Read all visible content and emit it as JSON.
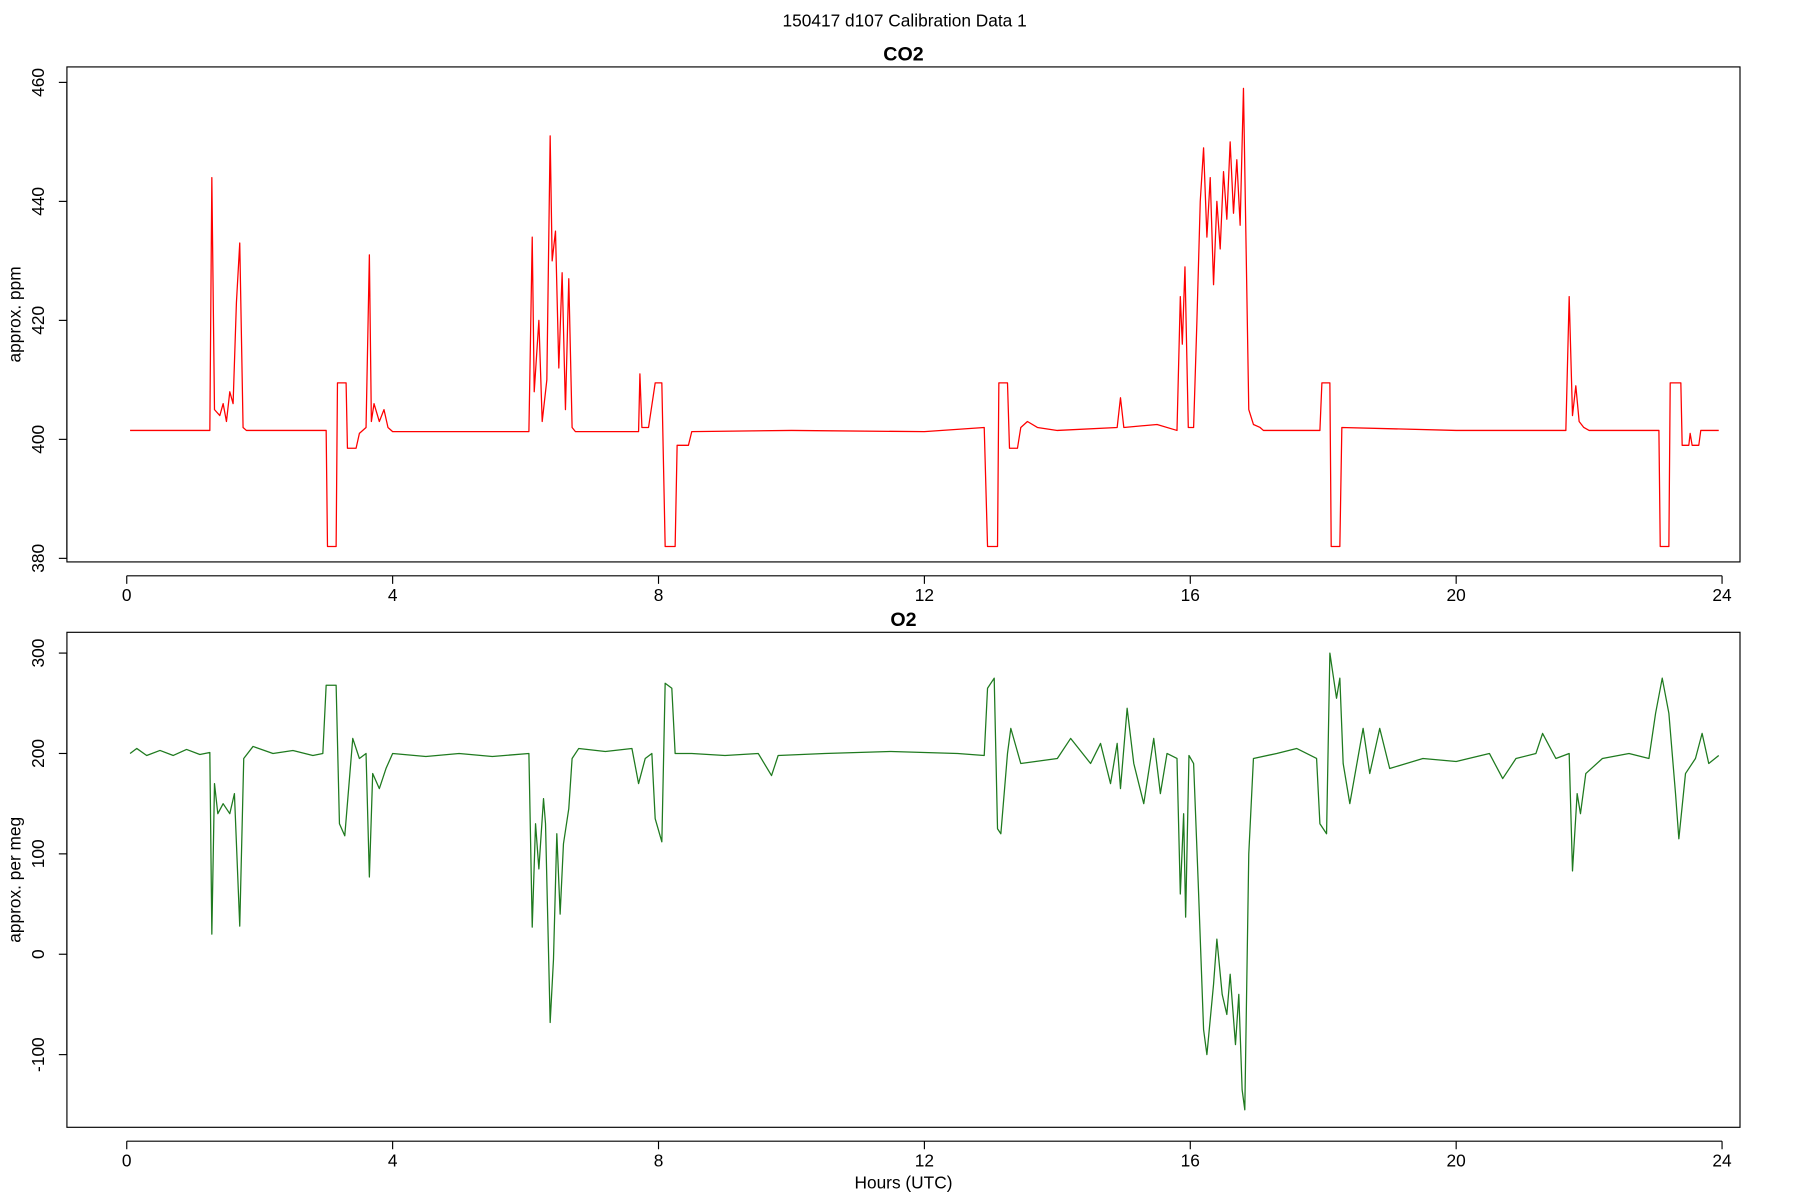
{
  "title": "150417   d107   Calibration Data 1",
  "chart_data": [
    {
      "type": "line",
      "title": "CO2",
      "ylabel": "approx. ppm",
      "color": "#ff0000",
      "xlim": [
        -0.9,
        24.27
      ],
      "ylim": [
        379.4,
        462.6
      ],
      "xticks": [
        0,
        4,
        8,
        12,
        16,
        20,
        24
      ],
      "yticks": [
        380,
        400,
        420,
        440,
        460
      ],
      "x": [
        0.05,
        1.25,
        1.28,
        1.32,
        1.4,
        1.45,
        1.5,
        1.55,
        1.6,
        1.65,
        1.7,
        1.75,
        1.8,
        3.0,
        3.02,
        3.15,
        3.17,
        3.3,
        3.32,
        3.45,
        3.5,
        3.6,
        3.65,
        3.68,
        3.72,
        3.8,
        3.87,
        3.93,
        4.0,
        6.05,
        6.1,
        6.13,
        6.2,
        6.25,
        6.32,
        6.37,
        6.4,
        6.45,
        6.5,
        6.55,
        6.6,
        6.65,
        6.7,
        6.75,
        7.7,
        7.72,
        7.75,
        7.85,
        7.95,
        8.05,
        8.1,
        8.25,
        8.28,
        8.45,
        8.5,
        10,
        12.0,
        12.9,
        12.95,
        13.1,
        13.12,
        13.25,
        13.28,
        13.4,
        13.45,
        13.55,
        13.7,
        14.0,
        14.9,
        14.95,
        15.0,
        15.5,
        15.8,
        15.85,
        15.88,
        15.92,
        15.97,
        16.05,
        16.1,
        16.15,
        16.2,
        16.25,
        16.3,
        16.35,
        16.4,
        16.45,
        16.5,
        16.55,
        16.6,
        16.65,
        16.7,
        16.75,
        16.8,
        16.88,
        16.95,
        17.05,
        17.1,
        17.95,
        17.98,
        18.1,
        18.12,
        18.25,
        18.28,
        20,
        21.65,
        21.7,
        21.75,
        21.8,
        21.85,
        21.92,
        22.0,
        23.05,
        23.07,
        23.2,
        23.22,
        23.38,
        23.4,
        23.5,
        23.52,
        23.55,
        23.65,
        23.68,
        23.95
      ],
      "values": [
        401.5,
        401.5,
        444,
        405,
        404,
        406,
        403,
        408,
        406,
        423,
        433,
        402,
        401.5,
        401.5,
        382,
        382,
        409.5,
        409.5,
        398.5,
        398.5,
        401,
        402,
        431,
        403,
        406,
        403,
        405,
        402,
        401.3,
        401.3,
        434,
        408,
        420,
        403,
        410,
        451,
        430,
        435,
        412,
        428,
        405,
        427,
        402,
        401.3,
        401.3,
        411,
        402,
        402,
        409.5,
        409.5,
        382,
        382,
        399,
        399,
        401.3,
        401.5,
        401.3,
        402,
        382,
        382,
        409.5,
        409.5,
        398.5,
        398.5,
        402,
        403,
        402,
        401.5,
        402,
        407,
        402,
        402.5,
        401.5,
        424,
        416,
        429,
        402,
        402,
        420,
        440,
        449,
        434,
        444,
        426,
        440,
        432,
        445,
        437,
        450,
        438,
        447,
        436,
        459,
        405,
        402.5,
        402,
        401.5,
        401.5,
        409.5,
        409.5,
        382,
        382,
        402,
        401.5,
        401.5,
        424,
        404,
        409,
        403,
        402,
        401.5,
        401.5,
        382,
        382,
        409.5,
        409.5,
        399,
        399,
        401,
        399,
        399,
        401.5,
        401.5
      ]
    },
    {
      "type": "line",
      "title": "O2",
      "ylabel": "approx. per meg",
      "xlabel": "Hours (UTC)",
      "color": "#1f7a1f",
      "xlim": [
        -0.9,
        24.27
      ],
      "ylim": [
        -172.4,
        320.7
      ],
      "xticks": [
        0,
        4,
        8,
        12,
        16,
        20,
        24
      ],
      "yticks": [
        -100,
        0,
        100,
        200,
        300
      ],
      "x": [
        0.05,
        0.15,
        0.3,
        0.5,
        0.7,
        0.9,
        1.1,
        1.25,
        1.28,
        1.32,
        1.37,
        1.45,
        1.55,
        1.62,
        1.7,
        1.76,
        1.9,
        2.2,
        2.5,
        2.8,
        2.95,
        3.0,
        3.15,
        3.2,
        3.28,
        3.4,
        3.5,
        3.6,
        3.65,
        3.7,
        3.8,
        3.9,
        4.0,
        4.5,
        5.0,
        5.5,
        6.05,
        6.1,
        6.15,
        6.2,
        6.27,
        6.3,
        6.37,
        6.42,
        6.47,
        6.52,
        6.57,
        6.65,
        6.7,
        6.8,
        7.2,
        7.6,
        7.7,
        7.8,
        7.9,
        7.95,
        8.05,
        8.1,
        8.2,
        8.25,
        8.5,
        9.0,
        9.5,
        9.7,
        9.8,
        10.5,
        11.5,
        12.5,
        12.9,
        12.95,
        13.05,
        13.1,
        13.15,
        13.25,
        13.3,
        13.45,
        14.0,
        14.2,
        14.5,
        14.65,
        14.8,
        14.9,
        14.95,
        15.05,
        15.15,
        15.3,
        15.45,
        15.55,
        15.65,
        15.8,
        15.85,
        15.9,
        15.93,
        15.98,
        16.05,
        16.12,
        16.2,
        16.25,
        16.35,
        16.4,
        16.48,
        16.55,
        16.6,
        16.68,
        16.73,
        16.78,
        16.82,
        16.88,
        16.95,
        17.3,
        17.6,
        17.9,
        17.95,
        18.05,
        18.1,
        18.2,
        18.25,
        18.3,
        18.4,
        18.6,
        18.7,
        18.85,
        19.0,
        19.5,
        20,
        20.5,
        20.7,
        20.9,
        21.2,
        21.3,
        21.5,
        21.7,
        21.75,
        21.82,
        21.87,
        21.95,
        22.2,
        22.6,
        22.9,
        23.0,
        23.1,
        23.2,
        23.3,
        23.35,
        23.45,
        23.6,
        23.7,
        23.8,
        23.95
      ],
      "values": [
        200,
        205,
        198,
        203,
        198,
        204,
        199,
        201,
        20,
        170,
        140,
        150,
        140,
        160,
        28,
        195,
        207,
        200,
        203,
        198,
        200,
        268,
        268,
        130,
        118,
        215,
        195,
        200,
        77,
        180,
        165,
        185,
        200,
        197,
        200,
        197,
        200,
        27,
        130,
        85,
        155,
        130,
        -68,
        -5,
        120,
        40,
        110,
        145,
        195,
        205,
        202,
        205,
        170,
        195,
        200,
        135,
        112,
        270,
        265,
        200,
        200,
        198,
        200,
        178,
        198,
        200,
        202,
        200,
        198,
        265,
        275,
        125,
        120,
        200,
        225,
        190,
        195,
        215,
        190,
        210,
        170,
        210,
        165,
        245,
        190,
        150,
        215,
        160,
        200,
        195,
        60,
        140,
        37,
        198,
        190,
        70,
        -75,
        -100,
        -30,
        15,
        -40,
        -60,
        -20,
        -90,
        -40,
        -135,
        -155,
        100,
        195,
        200,
        205,
        195,
        130,
        120,
        300,
        255,
        275,
        190,
        150,
        225,
        180,
        225,
        185,
        195,
        192,
        200,
        175,
        195,
        200,
        220,
        195,
        200,
        83,
        160,
        140,
        180,
        195,
        200,
        195,
        240,
        275,
        240,
        160,
        115,
        180,
        195,
        220,
        190,
        198
      ]
    }
  ]
}
